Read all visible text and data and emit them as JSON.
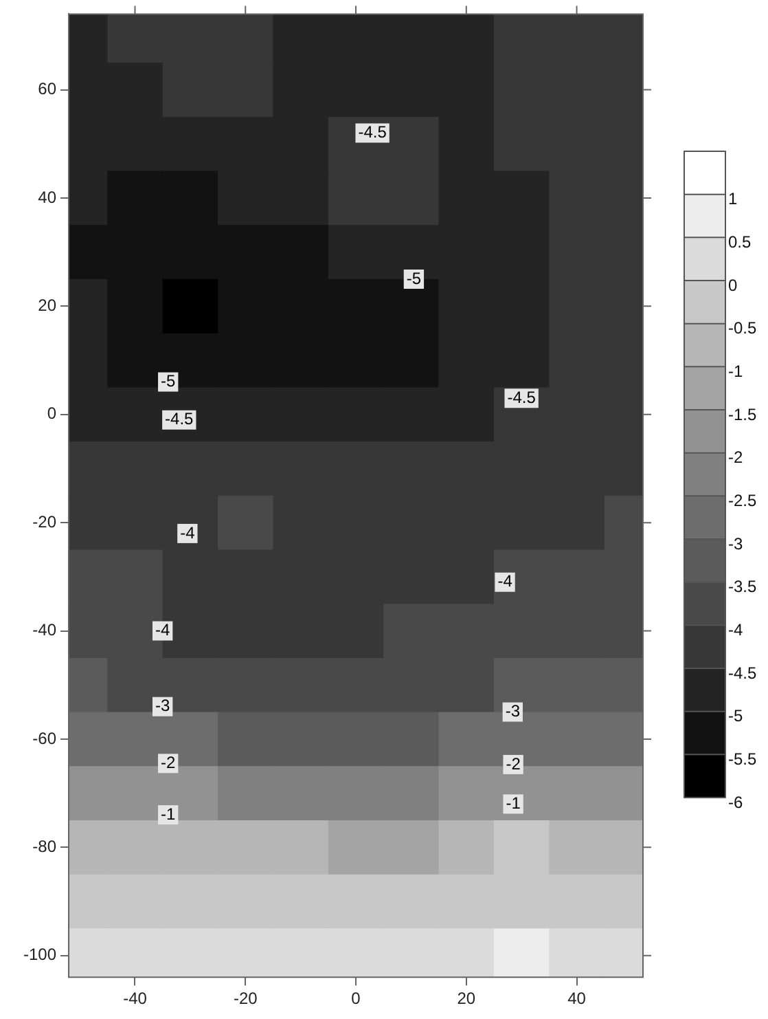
{
  "chart_data": {
    "type": "heatmap",
    "x": [
      -50,
      -40,
      -30,
      -20,
      -10,
      0,
      10,
      20,
      30,
      40,
      50
    ],
    "y": [
      70,
      60,
      50,
      40,
      30,
      20,
      10,
      0,
      -10,
      -20,
      -30,
      -40,
      -50,
      -60,
      -70,
      -80,
      -90,
      -100
    ],
    "cells": [
      [
        -4.7,
        -4.3,
        -4.2,
        -4.3,
        -4.7,
        -4.7,
        -4.7,
        -4.6,
        -4.2,
        -4.2,
        -4.2
      ],
      [
        -4.7,
        -4.6,
        -4.3,
        -4.4,
        -4.7,
        -4.7,
        -4.7,
        -4.7,
        -4.2,
        -4.2,
        -4.2
      ],
      [
        -4.8,
        -4.8,
        -4.7,
        -4.7,
        -4.6,
        -4.4,
        -4.4,
        -4.6,
        -4.3,
        -4.2,
        -4.2
      ],
      [
        -4.9,
        -5.1,
        -5.1,
        -5.0,
        -4.8,
        -4.4,
        -4.4,
        -4.7,
        -4.6,
        -4.4,
        -4.2
      ],
      [
        -5.1,
        -5.2,
        -5.3,
        -5.2,
        -5.1,
        -4.9,
        -4.8,
        -4.8,
        -4.7,
        -4.5,
        -4.2
      ],
      [
        -5.0,
        -5.3,
        -5.7,
        -5.3,
        -5.2,
        -5.2,
        -5.1,
        -5.0,
        -4.7,
        -4.4,
        -4.2
      ],
      [
        -4.8,
        -5.1,
        -5.2,
        -5.2,
        -5.2,
        -5.1,
        -5.1,
        -4.9,
        -4.6,
        -4.3,
        -4.2
      ],
      [
        -4.6,
        -4.6,
        -4.7,
        -4.8,
        -4.8,
        -4.7,
        -4.6,
        -4.6,
        -4.4,
        -4.2,
        -4.2
      ],
      [
        -4.3,
        -4.3,
        -4.3,
        -4.2,
        -4.3,
        -4.4,
        -4.3,
        -4.3,
        -4.2,
        -4.2,
        -4.1
      ],
      [
        -4.1,
        -4.2,
        -4.2,
        -3.8,
        -4.2,
        -4.3,
        -4.3,
        -4.2,
        -4.2,
        -4.1,
        -3.9
      ],
      [
        -3.9,
        -4.0,
        -4.2,
        -4.2,
        -4.2,
        -4.2,
        -4.2,
        -4.1,
        -3.9,
        -3.8,
        -3.8
      ],
      [
        -3.8,
        -3.9,
        -4.1,
        -4.1,
        -4.1,
        -4.1,
        -4.0,
        -3.9,
        -3.8,
        -3.7,
        -3.6
      ],
      [
        -3.4,
        -3.6,
        -3.7,
        -3.7,
        -3.8,
        -3.8,
        -3.7,
        -3.6,
        -3.5,
        -3.3,
        -3.2
      ],
      [
        -2.6,
        -2.8,
        -3.0,
        -3.1,
        -3.2,
        -3.2,
        -3.2,
        -3.0,
        -2.8,
        -2.6,
        -2.6
      ],
      [
        -1.6,
        -1.8,
        -1.9,
        -2.1,
        -2.2,
        -2.2,
        -2.2,
        -1.8,
        -1.6,
        -1.6,
        -1.6
      ],
      [
        -0.9,
        -0.9,
        -1.0,
        -0.8,
        -1.0,
        -1.2,
        -1.3,
        -0.6,
        -0.5,
        -0.6,
        -0.9
      ],
      [
        -0.5,
        -0.4,
        -0.3,
        -0.2,
        -0.4,
        -0.5,
        -0.5,
        -0.2,
        -0.2,
        -0.3,
        -0.5
      ],
      [
        0.1,
        0.1,
        0.2,
        0.3,
        0.2,
        0.2,
        0.3,
        0.4,
        0.5,
        0.3,
        0.1
      ]
    ],
    "xlim": [
      -52,
      52
    ],
    "ylim": [
      -104,
      74
    ],
    "xticks": [
      -40,
      -20,
      0,
      20,
      40
    ],
    "yticks": [
      -100,
      -80,
      -60,
      -40,
      -20,
      0,
      20,
      40,
      60
    ],
    "clim": [
      -6,
      1.5
    ],
    "cticks": [
      1,
      0.5,
      0,
      -0.5,
      -1,
      -1.5,
      -2,
      -2.5,
      -3,
      -3.5,
      -4,
      -4.5,
      -5,
      -5.5,
      -6
    ],
    "annotations": [
      "-4.5",
      "-5",
      "-4.5",
      "-5",
      "-4.5",
      "-4",
      "-4",
      "-4",
      "-3",
      "-3",
      "-2",
      "-2",
      "-1",
      "-1"
    ],
    "legend": false
  }
}
